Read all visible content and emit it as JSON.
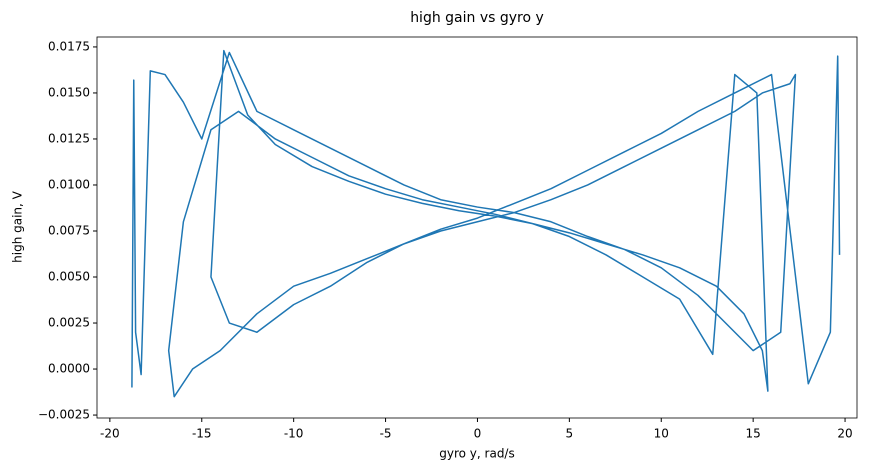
{
  "chart_data": {
    "type": "line",
    "title": "high gain vs gyro y",
    "xlabel": "gyro y, rad/s",
    "ylabel": "high gain, V",
    "color": "#1f77b4",
    "x": [
      -18.8,
      -18.7,
      -18.6,
      -18.3,
      -17.8,
      -17.0,
      -16.0,
      -15.0,
      -13.5,
      -12,
      -10,
      -8,
      -6,
      -4,
      -2,
      0,
      2,
      4,
      6,
      8,
      10,
      12,
      13.5,
      15,
      16.5,
      17.3,
      17.0,
      15.5,
      14,
      12,
      10,
      8,
      6,
      4,
      2,
      0,
      -2,
      -4,
      -6,
      -8,
      -10,
      -12,
      -14,
      -15.5,
      -16.5,
      -16.8,
      -16.0,
      -14.5,
      -13,
      -11,
      -9,
      -7,
      -5,
      -3,
      -1,
      1,
      3,
      5,
      7,
      9,
      11,
      12.8,
      14,
      15.2,
      15.8,
      15.5,
      14.5,
      13,
      11,
      9,
      7,
      5,
      3,
      1,
      -1,
      -3,
      -5,
      -7,
      -9,
      -11,
      -12.5,
      -13.8,
      -14.5,
      -13.5,
      -12,
      -10,
      -8,
      -6,
      -4,
      -2,
      0,
      2,
      4,
      6,
      8,
      10,
      12,
      14,
      16,
      18,
      19.2,
      19.6,
      19.7
    ],
    "values": [
      -0.001,
      0.0157,
      0.002,
      -0.0003,
      0.0162,
      0.016,
      0.0145,
      0.0125,
      0.0172,
      0.014,
      0.013,
      0.012,
      0.011,
      0.01,
      0.0092,
      0.0088,
      0.0085,
      0.008,
      0.0072,
      0.0065,
      0.0055,
      0.004,
      0.0025,
      0.001,
      0.002,
      0.016,
      0.0155,
      0.015,
      0.014,
      0.013,
      0.012,
      0.011,
      0.01,
      0.0092,
      0.0085,
      0.008,
      0.0075,
      0.0068,
      0.006,
      0.0052,
      0.0045,
      0.003,
      0.001,
      0.0,
      -0.0015,
      0.001,
      0.008,
      0.013,
      0.014,
      0.0125,
      0.0115,
      0.0105,
      0.0098,
      0.0092,
      0.0088,
      0.0084,
      0.0079,
      0.0072,
      0.0062,
      0.005,
      0.0038,
      0.0008,
      0.016,
      0.015,
      -0.0012,
      0.001,
      0.003,
      0.0045,
      0.0055,
      0.0062,
      0.0068,
      0.0074,
      0.0079,
      0.0083,
      0.0086,
      0.009,
      0.0095,
      0.0102,
      0.011,
      0.0122,
      0.0138,
      0.0173,
      0.005,
      0.0025,
      0.002,
      0.0035,
      0.0045,
      0.0058,
      0.0068,
      0.0076,
      0.0082,
      0.009,
      0.0098,
      0.0108,
      0.0118,
      0.0128,
      0.014,
      0.015,
      0.016,
      -0.0008,
      0.002,
      0.017,
      0.0062
    ],
    "xlim": [
      -20.7,
      20.65
    ],
    "ylim": [
      -0.00266,
      0.01804
    ],
    "xticks": [
      -20,
      -15,
      -10,
      -5,
      0,
      5,
      10,
      15,
      20
    ],
    "yticks": [
      {
        "value": -0.0025,
        "label": "−0.0025"
      },
      {
        "value": 0,
        "label": "0.0000"
      },
      {
        "value": 0.0025,
        "label": "0.0025"
      },
      {
        "value": 0.005,
        "label": "0.0050"
      },
      {
        "value": 0.0075,
        "label": "0.0075"
      },
      {
        "value": 0.01,
        "label": "0.0100"
      },
      {
        "value": 0.0125,
        "label": "0.0125"
      },
      {
        "value": 0.015,
        "label": "0.0150"
      },
      {
        "value": 0.0175,
        "label": "0.0175"
      }
    ],
    "grid": false
  }
}
